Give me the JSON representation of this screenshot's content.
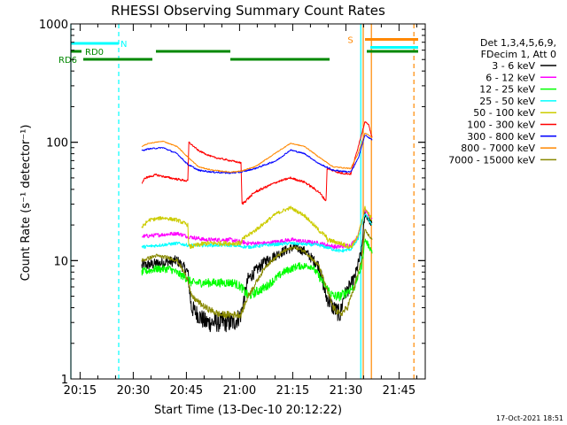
{
  "chart_data": {
    "type": "line",
    "title": "RHESSI Observing Summary Count Rates",
    "xlabel": "Start Time (13-Dec-10 20:12:22)",
    "ylabel": "Count Rate (s⁻¹ detector⁻¹)",
    "x_unit": "minutes after 20:12:22",
    "xlim": [
      0,
      100
    ],
    "ylim": [
      1,
      1000
    ],
    "yscale": "log",
    "x_tick_labels": [
      {
        "x": 2.6,
        "label": "20:15"
      },
      {
        "x": 17.6,
        "label": "20:30"
      },
      {
        "x": 32.6,
        "label": "20:45"
      },
      {
        "x": 47.6,
        "label": "21:00"
      },
      {
        "x": 62.6,
        "label": "21:15"
      },
      {
        "x": 77.6,
        "label": "21:30"
      },
      {
        "x": 92.6,
        "label": "21:45"
      }
    ],
    "y_tick_labels": [
      {
        "y": 1,
        "label": "1"
      },
      {
        "y": 10,
        "label": "10"
      },
      {
        "y": 100,
        "label": "100"
      },
      {
        "y": 1000,
        "label": "1000"
      }
    ],
    "legend": {
      "placement": "right",
      "header": [
        "Det 1,3,4,5,6,9,",
        "FDecim 1, Att 0"
      ],
      "entries": [
        "3 - 6 keV",
        "6 - 12 keV",
        "12 - 25 keV",
        "25 - 50 keV",
        "50 - 100 keV",
        "100 - 300 keV",
        "300 - 800 keV",
        "800 - 7000 keV",
        "7000 - 15000 keV"
      ]
    },
    "series": [
      {
        "name": "3 - 6 keV",
        "color": "#000000",
        "noise": 0.9,
        "x": [
          20,
          25,
          30,
          33,
          34,
          38,
          42,
          44,
          46,
          48,
          50,
          55,
          60,
          63,
          66,
          70,
          72,
          74,
          76,
          77,
          80,
          82,
          83,
          85
        ],
        "y": [
          9,
          9.5,
          10,
          8,
          4,
          3,
          3,
          3,
          3,
          3.5,
          7,
          10,
          12,
          13,
          12,
          9,
          5,
          4,
          3.5,
          5,
          7,
          12,
          25,
          20
        ]
      },
      {
        "name": "6 - 12 keV",
        "color": "#ff00ff",
        "noise": 0.45,
        "x": [
          20,
          25,
          30,
          33,
          38,
          45,
          50,
          55,
          62,
          70,
          75,
          79,
          81,
          83,
          85
        ],
        "y": [
          16,
          16.5,
          17,
          16,
          15,
          15,
          14,
          14,
          15,
          14,
          13,
          13.5,
          16,
          27,
          22
        ]
      },
      {
        "name": "12 - 25 keV",
        "color": "#00ff00",
        "noise": 0.6,
        "x": [
          20,
          24,
          28,
          33,
          34,
          38,
          42,
          46,
          48,
          50,
          55,
          60,
          64,
          68,
          72,
          74,
          76,
          78,
          80,
          82,
          83,
          85
        ],
        "y": [
          8,
          8.5,
          8.5,
          7,
          6.5,
          6.5,
          6.5,
          6.5,
          6,
          5,
          6,
          8,
          9,
          9,
          6,
          5,
          5,
          5.5,
          6,
          9,
          15,
          12
        ]
      },
      {
        "name": "25 - 50 keV",
        "color": "#00ffff",
        "noise": 0.35,
        "x": [
          20,
          25,
          30,
          33,
          38,
          45,
          50,
          55,
          62,
          70,
          76,
          79,
          81,
          83,
          85
        ],
        "y": [
          13,
          13.5,
          14,
          13.5,
          13.5,
          13.5,
          13,
          13.5,
          14,
          13.5,
          12,
          12.5,
          15,
          25,
          20
        ]
      },
      {
        "name": "50 - 100 keV",
        "color": "#cccc00",
        "noise": 0.5,
        "x": [
          20,
          22,
          26,
          30,
          33,
          33.3,
          38,
          45,
          48,
          48.3,
          52,
          58,
          62,
          66,
          70,
          72,
          72.3,
          76,
          79,
          81,
          83,
          85
        ],
        "y": [
          19,
          22,
          23,
          22,
          20,
          13,
          14,
          14,
          14,
          15,
          18,
          25,
          28,
          24,
          18,
          16,
          15,
          14,
          13,
          16,
          28,
          22
        ]
      },
      {
        "name": "100 - 300 keV",
        "color": "#ff0000",
        "noise": 0.45,
        "x": [
          20,
          21,
          24,
          28,
          33,
          33.3,
          36,
          40,
          45,
          48,
          48.3,
          52,
          58,
          62,
          66,
          70,
          72,
          72.3,
          76,
          79,
          81,
          83,
          84,
          85
        ],
        "y": [
          45,
          50,
          53,
          50,
          47,
          100,
          85,
          75,
          70,
          67,
          30,
          38,
          46,
          50,
          46,
          38,
          32,
          60,
          55,
          54,
          90,
          150,
          140,
          110
        ]
      },
      {
        "name": "300 - 800 keV",
        "color": "#0000ff",
        "noise": 0.35,
        "x": [
          20,
          22,
          26,
          30,
          33,
          36,
          40,
          45,
          48,
          52,
          58,
          62,
          66,
          70,
          74,
          79,
          81,
          83,
          85
        ],
        "y": [
          85,
          88,
          90,
          80,
          65,
          58,
          56,
          55,
          56,
          60,
          70,
          86,
          80,
          66,
          58,
          56,
          72,
          115,
          105
        ]
      },
      {
        "name": "800 - 7000 keV",
        "color": "#ff8800",
        "noise": 0.25,
        "x": [
          20,
          22,
          26,
          30,
          33,
          36,
          40,
          45,
          48,
          52,
          58,
          62,
          66,
          70,
          74,
          79,
          81,
          83,
          85
        ],
        "y": [
          92,
          98,
          102,
          92,
          75,
          62,
          58,
          56,
          57,
          62,
          82,
          98,
          92,
          75,
          62,
          60,
          80,
          120,
          110
        ]
      },
      {
        "name": "7000 - 15000 keV",
        "color": "#888800",
        "noise": 0.35,
        "x": [
          20,
          24,
          28,
          30,
          33,
          34,
          38,
          42,
          46,
          48,
          50,
          55,
          60,
          63,
          66,
          70,
          72,
          74,
          76,
          78,
          80,
          82,
          83,
          85
        ],
        "y": [
          10,
          11,
          10.5,
          10,
          7,
          5,
          4,
          3.5,
          3.5,
          3.5,
          5,
          9,
          12,
          13,
          12,
          9,
          6,
          4,
          3.5,
          4,
          6,
          10,
          18,
          15
        ]
      }
    ],
    "annotations": [
      {
        "label": "N",
        "x": 13.5,
        "level": 2,
        "color": "#00ffff"
      },
      {
        "label": "RD0",
        "x": 3.5,
        "level": 1,
        "color": "#008800"
      },
      {
        "label": "RD6",
        "x": -4,
        "level": 0,
        "color": "#008800"
      },
      {
        "label": "S",
        "x": 77.6,
        "level": 2.5,
        "color": "#ff8800"
      }
    ],
    "status_bars": [
      {
        "color": "#00ffff",
        "level": 2,
        "x0": 0,
        "x1": 13.5
      },
      {
        "color": "#00ffff",
        "level": 1.5,
        "x0": 84.5,
        "x1": 98
      },
      {
        "color": "#ff8800",
        "level": 2.5,
        "x0": 83,
        "x1": 98
      },
      {
        "color": "#008800",
        "level": 1,
        "x0": 0,
        "x1": 3
      },
      {
        "color": "#008800",
        "level": 1,
        "x0": 24,
        "x1": 45
      },
      {
        "color": "#008800",
        "level": 1,
        "x0": 83.5,
        "x1": 98
      },
      {
        "color": "#008800",
        "level": 0,
        "x0": 3.5,
        "x1": 23
      },
      {
        "color": "#008800",
        "level": 0,
        "x0": 45,
        "x1": 73
      }
    ],
    "vertical_markers": [
      {
        "x": 0,
        "color": "#00ffff",
        "dash": false
      },
      {
        "x": 13.5,
        "color": "#00ffff",
        "dash": true
      },
      {
        "x": 81.8,
        "color": "#00ffff",
        "dash": false
      },
      {
        "x": 82.5,
        "color": "#ff8800",
        "dash": false
      },
      {
        "x": 84.8,
        "color": "#ff8800",
        "dash": false
      },
      {
        "x": 96.8,
        "color": "#ff8800",
        "dash": true
      }
    ]
  },
  "footer": {
    "timestamp": "17-Oct-2021 18:51"
  }
}
